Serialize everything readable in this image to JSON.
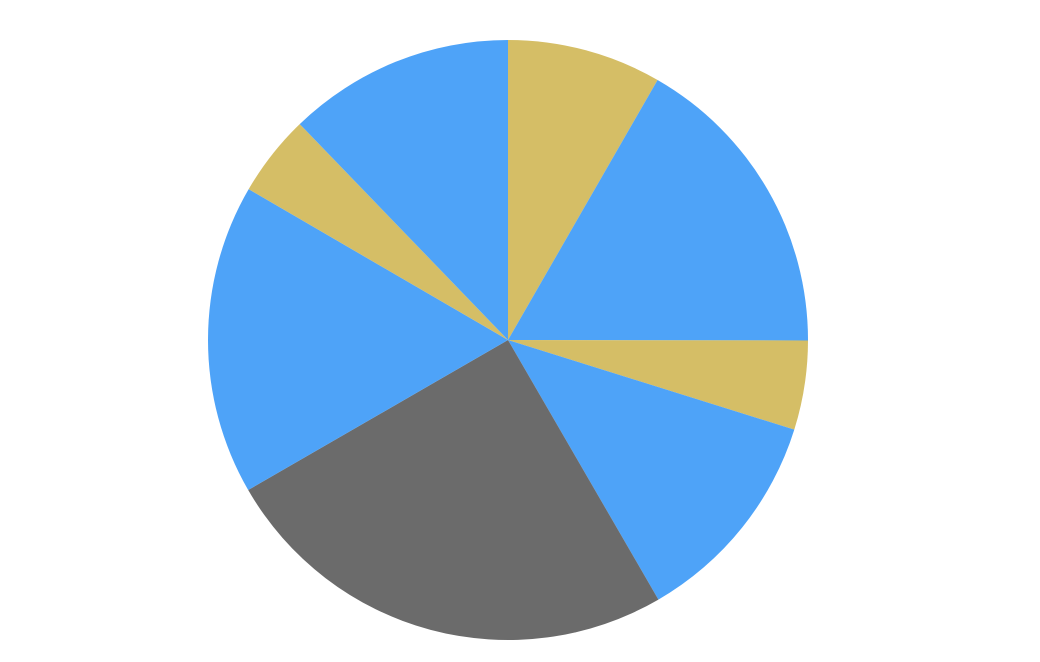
{
  "chart_data": {
    "type": "pie",
    "values": [
      8.3,
      16.7,
      4.8,
      11.8,
      25,
      16.7,
      4.4,
      12.2
    ],
    "colors": [
      "#d5be66",
      "#4ea3f8",
      "#d5be66",
      "#4ea3f8",
      "#6b6b6b",
      "#4ea3f8",
      "#d5be66",
      "#4ea3f8"
    ]
  }
}
